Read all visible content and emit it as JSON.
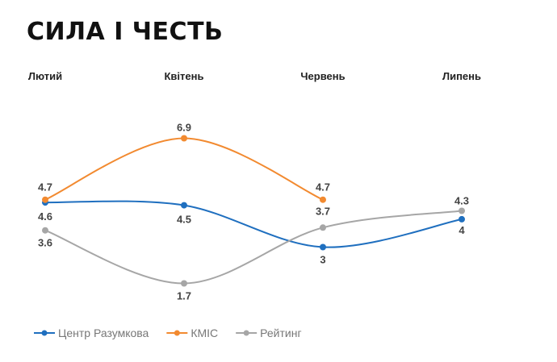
{
  "chart_data": {
    "type": "line",
    "title": "СИЛА І ЧЕСТЬ",
    "categories": [
      "Лютий",
      "Квітень",
      "Червень",
      "Липень"
    ],
    "series": [
      {
        "name": "Центр Разумкова",
        "color": "#1f6fbf",
        "values": [
          4.6,
          4.5,
          3,
          4
        ]
      },
      {
        "name": "КМІС",
        "color": "#f28a30",
        "values": [
          4.7,
          6.9,
          4.7,
          null
        ]
      },
      {
        "name": "Рейтинг",
        "color": "#a6a6a6",
        "values": [
          3.6,
          1.7,
          3.7,
          4.3
        ]
      }
    ],
    "data_labels": {
      "Центр Разумкова": [
        "4.6",
        "4.5",
        "3",
        "4"
      ],
      "КМІС": [
        "4.7",
        "6.9",
        "4.7",
        ""
      ],
      "Рейтинг": [
        "3.6",
        "1.7",
        "3.7",
        "4.3"
      ]
    },
    "legend_position": "bottom-left",
    "grid": false
  }
}
